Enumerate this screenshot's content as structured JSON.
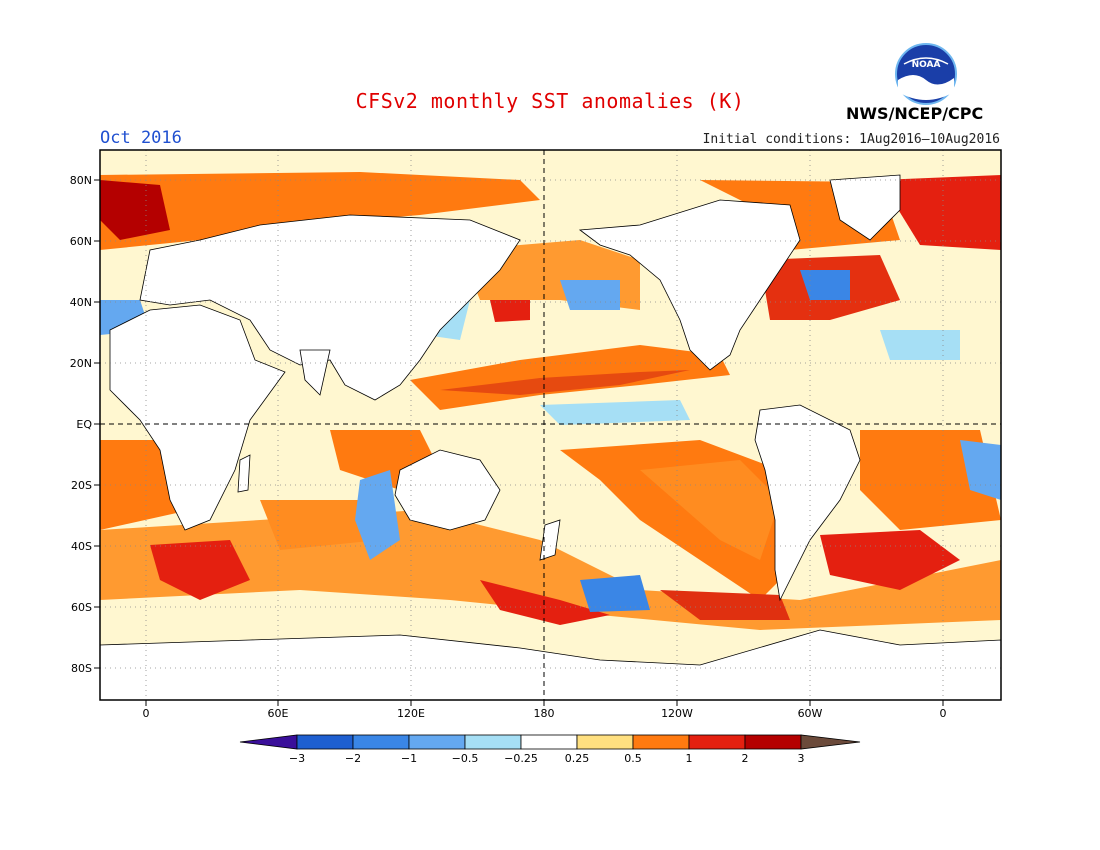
{
  "header": {
    "title": "CFSv2 monthly SST anomalies (K)",
    "month": "Oct 2016",
    "initial_conditions": "Initial conditions: 1Aug2016–10Aug2016",
    "agency": "NWS/NCEP/CPC",
    "logo_text": "NOAA"
  },
  "map": {
    "lat_labels": [
      "80N",
      "60N",
      "40N",
      "20N",
      "EQ",
      "20S",
      "40S",
      "60S",
      "80S"
    ],
    "lon_labels": [
      "0",
      "60E",
      "120E",
      "180",
      "120W",
      "60W",
      "0"
    ],
    "projection": "cylindrical",
    "reference_lines": [
      "equator",
      "date line (180)"
    ]
  },
  "colorbar": {
    "labels": [
      "−3",
      "−2",
      "−1",
      "−0.5",
      "−0.25",
      "0.25",
      "0.5",
      "1",
      "2",
      "3"
    ],
    "colors": [
      "#3a0f9a",
      "#1e5fd0",
      "#3a86e6",
      "#64a8f0",
      "#a6dff5",
      "#ffffff",
      "#ffe080",
      "#ff7a10",
      "#e42010",
      "#b40000",
      "#6b4a3a"
    ]
  }
}
